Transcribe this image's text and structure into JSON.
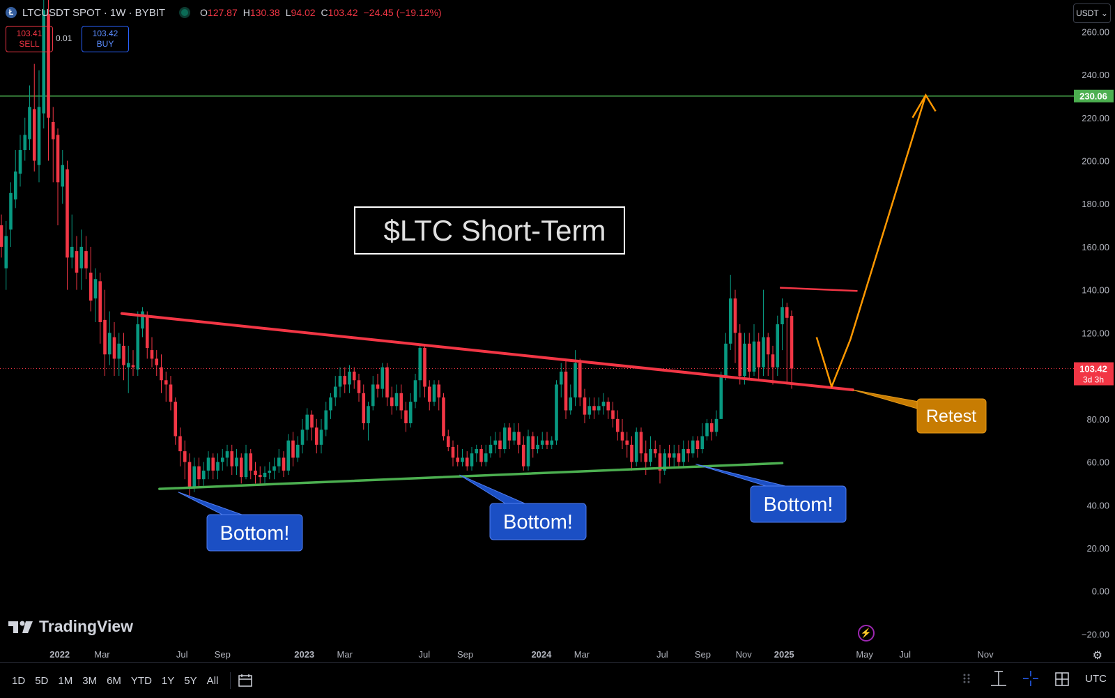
{
  "header": {
    "symbol": "LTCUSDT SPOT · 1W · BYBIT",
    "symbol_icon": "Ł",
    "ohlc": [
      {
        "k": "O",
        "v": "127.87"
      },
      {
        "k": "H",
        "v": "130.38"
      },
      {
        "k": "L",
        "v": "94.02"
      },
      {
        "k": "C",
        "v": "103.42"
      }
    ],
    "change": "−24.45 (−19.12%)"
  },
  "trade": {
    "sell_price": "103.41",
    "sell_label": "SELL",
    "spread": "0.01",
    "buy_price": "103.42",
    "buy_label": "BUY"
  },
  "currency_button": "USDT ⌄",
  "brand": "TradingView",
  "timeframes": [
    "1D",
    "5D",
    "1M",
    "3M",
    "6M",
    "YTD",
    "1Y",
    "5Y",
    "All"
  ],
  "timezone": "UTC",
  "colors": {
    "up": "#089981",
    "down": "#f23645",
    "target": "#4caf50",
    "support": "#4caf50",
    "arrow": "#ff9800",
    "callout_blue": "#1b4fc4",
    "retest": "#c77c02"
  },
  "chart_data": {
    "type": "candlestick",
    "title": "$LTC Short-Term",
    "ylim": [
      -20,
      260
    ],
    "yticks": [
      "260.00",
      "240.00",
      "220.00",
      "200.00",
      "180.00",
      "160.00",
      "140.00",
      "120.00",
      "100.00",
      "80.00",
      "60.00",
      "40.00",
      "20.00",
      "0.00",
      "−20.00"
    ],
    "ytick_values": [
      260,
      240,
      220,
      200,
      180,
      160,
      140,
      120,
      100,
      80,
      60,
      40,
      20,
      0,
      -20
    ],
    "xticks": [
      {
        "label": "2022",
        "t": 12.4
      },
      {
        "label": "Mar",
        "t": 21.4
      },
      {
        "label": "Jul",
        "t": 38.4
      },
      {
        "label": "Sep",
        "t": 47.0
      },
      {
        "label": "2023",
        "t": 64.4
      },
      {
        "label": "Mar",
        "t": 73.0
      },
      {
        "label": "Jul",
        "t": 89.9
      },
      {
        "label": "Sep",
        "t": 98.6
      },
      {
        "label": "2024",
        "t": 114.8
      },
      {
        "label": "Mar",
        "t": 123.4
      },
      {
        "label": "Jul",
        "t": 140.5
      },
      {
        "label": "Sep",
        "t": 149.1
      },
      {
        "label": "Nov",
        "t": 157.8
      },
      {
        "label": "2025",
        "t": 166.4
      },
      {
        "label": "May",
        "t": 183.5
      },
      {
        "label": "Jul",
        "t": 192.1
      },
      {
        "label": "Nov",
        "t": 209.2
      }
    ],
    "ohlc": [
      [
        170,
        160,
        175,
        155
      ],
      [
        150,
        165,
        172,
        140
      ],
      [
        168,
        185,
        190,
        160
      ],
      [
        182,
        195,
        205,
        178
      ],
      [
        194,
        205,
        212,
        188
      ],
      [
        205,
        212,
        220,
        200
      ],
      [
        210,
        225,
        235,
        205
      ],
      [
        224,
        200,
        245,
        195
      ],
      [
        198,
        225,
        242,
        190
      ],
      [
        222,
        270,
        290,
        215
      ],
      [
        268,
        220,
        280,
        200
      ],
      [
        218,
        210,
        225,
        190
      ],
      [
        212,
        190,
        215,
        170
      ],
      [
        188,
        198,
        205,
        180
      ],
      [
        196,
        155,
        200,
        140
      ],
      [
        155,
        160,
        175,
        150
      ],
      [
        158,
        148,
        165,
        140
      ],
      [
        150,
        160,
        168,
        140
      ],
      [
        158,
        150,
        165,
        145
      ],
      [
        148,
        135,
        160,
        130
      ],
      [
        136,
        145,
        150,
        125
      ],
      [
        144,
        125,
        148,
        115
      ],
      [
        126,
        110,
        140,
        100
      ],
      [
        110,
        120,
        130,
        105
      ],
      [
        118,
        108,
        125,
        100
      ],
      [
        108,
        115,
        120,
        100
      ],
      [
        114,
        105,
        120,
        98
      ],
      [
        104,
        106,
        114,
        92
      ],
      [
        105,
        104,
        112,
        100
      ],
      [
        103,
        124,
        130,
        100
      ],
      [
        122,
        130,
        132,
        118
      ],
      [
        128,
        113,
        130,
        108
      ],
      [
        112,
        108,
        118,
        104
      ],
      [
        108,
        105,
        112,
        100
      ],
      [
        104,
        98,
        110,
        92
      ],
      [
        98,
        96,
        102,
        88
      ],
      [
        96,
        88,
        100,
        84
      ],
      [
        88,
        72,
        90,
        68
      ],
      [
        72,
        65,
        76,
        58
      ],
      [
        65,
        60,
        70,
        52
      ],
      [
        60,
        48,
        64,
        44
      ],
      [
        48,
        58,
        62,
        46
      ],
      [
        58,
        52,
        62,
        48
      ],
      [
        52,
        56,
        60,
        49
      ],
      [
        56,
        62,
        65,
        52
      ],
      [
        62,
        56,
        64,
        52
      ],
      [
        56,
        60,
        64,
        52
      ],
      [
        60,
        62,
        66,
        56
      ],
      [
        62,
        65,
        68,
        58
      ],
      [
        65,
        58,
        68,
        54
      ],
      [
        58,
        62,
        66,
        54
      ],
      [
        62,
        53,
        64,
        50
      ],
      [
        53,
        64,
        68,
        52
      ],
      [
        64,
        56,
        66,
        52
      ],
      [
        56,
        54,
        60,
        50
      ],
      [
        54,
        53,
        58,
        50
      ],
      [
        53,
        55,
        58,
        50
      ],
      [
        55,
        56,
        60,
        52
      ],
      [
        56,
        58,
        62,
        52
      ],
      [
        58,
        62,
        66,
        55
      ],
      [
        62,
        56,
        65,
        53
      ],
      [
        56,
        70,
        73,
        54
      ],
      [
        70,
        62,
        74,
        58
      ],
      [
        62,
        68,
        72,
        60
      ],
      [
        68,
        75,
        80,
        64
      ],
      [
        75,
        82,
        85,
        70
      ],
      [
        82,
        76,
        84,
        70
      ],
      [
        76,
        68,
        80,
        64
      ],
      [
        68,
        75,
        80,
        64
      ],
      [
        75,
        84,
        88,
        72
      ],
      [
        84,
        90,
        92,
        80
      ],
      [
        90,
        95,
        100,
        86
      ],
      [
        95,
        100,
        104,
        90
      ],
      [
        100,
        96,
        104,
        92
      ],
      [
        96,
        102,
        105,
        92
      ],
      [
        102,
        98,
        104,
        94
      ],
      [
        98,
        92,
        101,
        88
      ],
      [
        92,
        78,
        96,
        75
      ],
      [
        78,
        86,
        88,
        70
      ],
      [
        86,
        96,
        100,
        84
      ],
      [
        96,
        94,
        101,
        90
      ],
      [
        94,
        104,
        106,
        90
      ],
      [
        104,
        90,
        106,
        86
      ],
      [
        90,
        86,
        95,
        82
      ],
      [
        86,
        92,
        96,
        84
      ],
      [
        92,
        84,
        96,
        80
      ],
      [
        84,
        78,
        88,
        74
      ],
      [
        78,
        88,
        92,
        76
      ],
      [
        88,
        98,
        101,
        85
      ],
      [
        98,
        113,
        114,
        90
      ],
      [
        113,
        95,
        114,
        90
      ],
      [
        95,
        88,
        98,
        84
      ],
      [
        88,
        96,
        98,
        86
      ],
      [
        96,
        90,
        98,
        84
      ],
      [
        90,
        72,
        92,
        70
      ],
      [
        72,
        67,
        75,
        65
      ],
      [
        67,
        62,
        70,
        58
      ],
      [
        62,
        60,
        68,
        58
      ],
      [
        60,
        62,
        66,
        58
      ],
      [
        62,
        58,
        65,
        56
      ],
      [
        58,
        64,
        67,
        56
      ],
      [
        64,
        66,
        68,
        60
      ],
      [
        66,
        60,
        68,
        58
      ],
      [
        60,
        64,
        68,
        58
      ],
      [
        64,
        68,
        72,
        62
      ],
      [
        68,
        70,
        74,
        64
      ],
      [
        70,
        66,
        74,
        62
      ],
      [
        66,
        76,
        78,
        64
      ],
      [
        76,
        70,
        78,
        66
      ],
      [
        70,
        74,
        78,
        68
      ],
      [
        74,
        68,
        78,
        64
      ],
      [
        68,
        58,
        72,
        56
      ],
      [
        58,
        72,
        75,
        56
      ],
      [
        72,
        66,
        74,
        62
      ],
      [
        66,
        68,
        72,
        64
      ],
      [
        68,
        70,
        74,
        66
      ],
      [
        70,
        68,
        74,
        66
      ],
      [
        68,
        70,
        72,
        66
      ],
      [
        70,
        96,
        98,
        68
      ],
      [
        96,
        102,
        106,
        90
      ],
      [
        102,
        84,
        108,
        80
      ],
      [
        84,
        90,
        96,
        82
      ],
      [
        90,
        106,
        112,
        86
      ],
      [
        106,
        90,
        108,
        86
      ],
      [
        90,
        82,
        94,
        78
      ],
      [
        82,
        86,
        90,
        80
      ],
      [
        86,
        84,
        90,
        80
      ],
      [
        84,
        86,
        90,
        82
      ],
      [
        86,
        88,
        92,
        82
      ],
      [
        88,
        84,
        90,
        80
      ],
      [
        84,
        80,
        88,
        76
      ],
      [
        80,
        74,
        84,
        70
      ],
      [
        74,
        70,
        80,
        66
      ],
      [
        70,
        68,
        74,
        62
      ],
      [
        68,
        60,
        72,
        56
      ],
      [
        60,
        74,
        76,
        58
      ],
      [
        74,
        64,
        76,
        60
      ],
      [
        64,
        60,
        70,
        54
      ],
      [
        60,
        66,
        72,
        58
      ],
      [
        66,
        64,
        70,
        62
      ],
      [
        64,
        56,
        68,
        50
      ],
      [
        56,
        64,
        66,
        54
      ],
      [
        64,
        62,
        68,
        58
      ],
      [
        62,
        64,
        68,
        58
      ],
      [
        64,
        60,
        68,
        58
      ],
      [
        60,
        66,
        70,
        58
      ],
      [
        66,
        64,
        70,
        60
      ],
      [
        64,
        70,
        72,
        62
      ],
      [
        70,
        66,
        72,
        62
      ],
      [
        66,
        72,
        78,
        64
      ],
      [
        72,
        78,
        80,
        70
      ],
      [
        78,
        74,
        80,
        70
      ],
      [
        74,
        80,
        84,
        72
      ],
      [
        80,
        100,
        102,
        80
      ],
      [
        100,
        115,
        120,
        98
      ],
      [
        115,
        136,
        147,
        112
      ],
      [
        136,
        120,
        140,
        106
      ],
      [
        120,
        100,
        124,
        96
      ],
      [
        100,
        115,
        120,
        96
      ],
      [
        115,
        102,
        120,
        98
      ],
      [
        102,
        116,
        124,
        100
      ],
      [
        116,
        104,
        120,
        98
      ],
      [
        104,
        118,
        140,
        100
      ],
      [
        118,
        110,
        120,
        100
      ],
      [
        110,
        104,
        114,
        96
      ],
      [
        104,
        124,
        128,
        100
      ],
      [
        124,
        132,
        136,
        112
      ],
      [
        132,
        127,
        134,
        96
      ],
      [
        127.87,
        103.42,
        130.38,
        94.02
      ]
    ],
    "annotations": {
      "resistance_label": "Bottom!",
      "retest_label": "Retest",
      "target_price": "230.06",
      "last_price": "103.42",
      "countdown": "3d 3h",
      "bottom_callouts": [
        "Bottom!",
        "Bottom!",
        "Bottom!"
      ]
    }
  }
}
